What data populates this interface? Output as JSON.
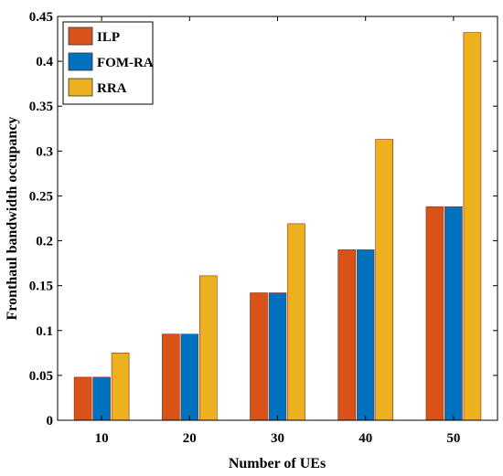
{
  "chart_data": {
    "type": "bar",
    "title": "",
    "xlabel": "Number of UEs",
    "ylabel": "Fronthaul bandwidth occupancy",
    "categories": [
      "10",
      "20",
      "30",
      "40",
      "50"
    ],
    "series": [
      {
        "name": "ILP",
        "color": "#d95319",
        "values": [
          0.048,
          0.096,
          0.142,
          0.19,
          0.238
        ]
      },
      {
        "name": "FOM-RA",
        "color": "#0072bd",
        "values": [
          0.048,
          0.096,
          0.142,
          0.19,
          0.238
        ]
      },
      {
        "name": "RRA",
        "color": "#edb120",
        "values": [
          0.075,
          0.161,
          0.219,
          0.313,
          0.432
        ]
      }
    ],
    "ylim": [
      0,
      0.45
    ],
    "yticks": [
      "0",
      "0.05",
      "0.1",
      "0.15",
      "0.2",
      "0.25",
      "0.3",
      "0.35",
      "0.4",
      "0.45"
    ],
    "grid": false,
    "legend_position": "top-left"
  }
}
